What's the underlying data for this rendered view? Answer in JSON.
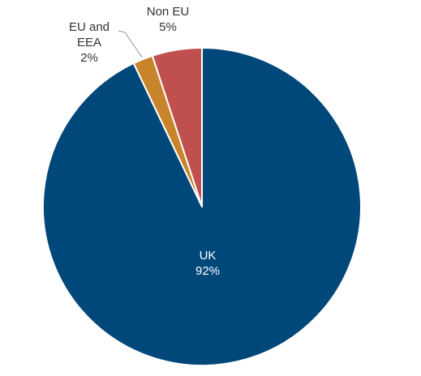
{
  "chart_data": {
    "type": "pie",
    "title": "",
    "start_angle_deg": 0,
    "direction": "clockwise",
    "slices": [
      {
        "label": "UK",
        "value": 92,
        "value_label": "92%",
        "color": "#00477A",
        "label_color": "#ffffff",
        "label_position": "inside"
      },
      {
        "label": "EU and EEA",
        "label_lines": [
          "EU and",
          "EEA"
        ],
        "value": 2,
        "value_label": "2%",
        "color": "#C8842A",
        "label_color": "#333333",
        "label_position": "outside-leader"
      },
      {
        "label": "Non EU",
        "value": 5,
        "value_label": "5%",
        "color": "#C0504D",
        "label_color": "#333333",
        "label_position": "outside"
      }
    ],
    "legend": "none"
  }
}
